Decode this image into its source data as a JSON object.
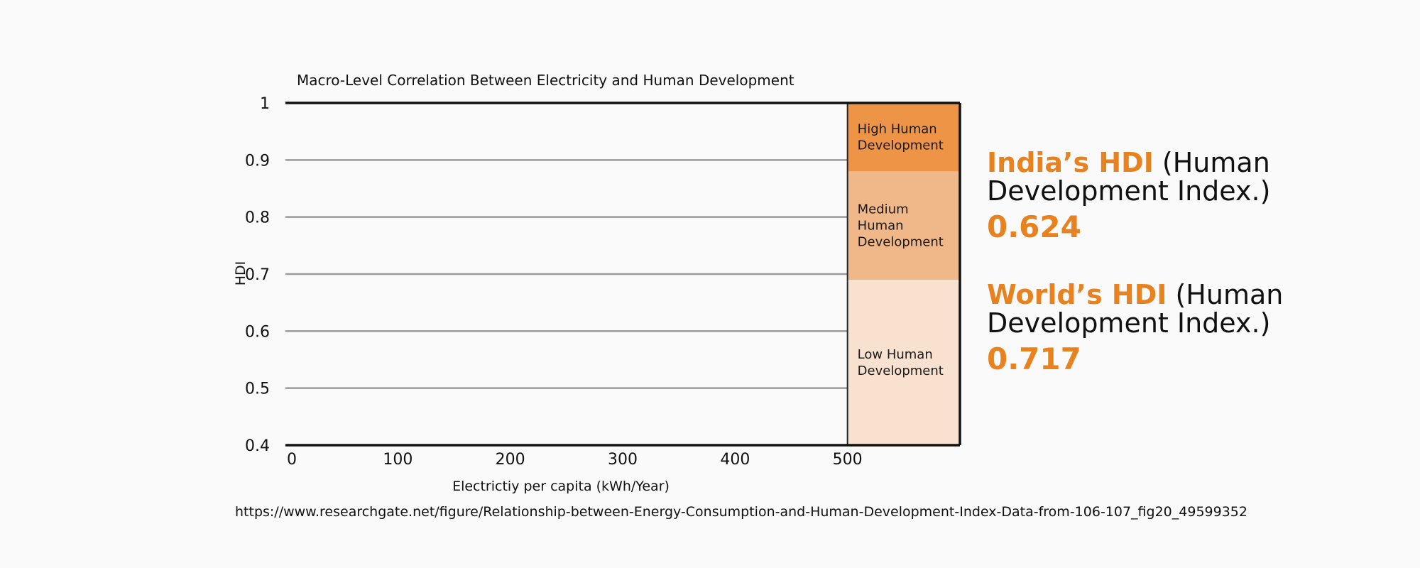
{
  "chart_data": {
    "type": "bar",
    "title": "Macro-Level Correlation Between Electricity and Human Development",
    "xlabel": "Electrictiy per capita (kWh/Year)",
    "ylabel": "HDI",
    "xlim": [
      0,
      600
    ],
    "ylim": [
      0.4,
      1.0
    ],
    "x_ticks": [
      "0",
      "100",
      "200",
      "300",
      "400",
      "500"
    ],
    "x_tick_values": [
      0,
      100,
      200,
      300,
      400,
      500
    ],
    "y_ticks": [
      "0.4",
      "0.5",
      "0.6",
      "0.7",
      "0.8",
      "0.9",
      "1"
    ],
    "y_tick_values": [
      0.4,
      0.5,
      0.6,
      0.7,
      0.8,
      0.9,
      1.0
    ],
    "grid": true,
    "zones": [
      {
        "label": "High Human Development",
        "y_from": 0.88,
        "y_to": 1.0,
        "x_from": 500,
        "x_to": 600,
        "color": "#ed9447"
      },
      {
        "label": "Medium Human Development",
        "y_from": 0.69,
        "y_to": 0.88,
        "x_from": 500,
        "x_to": 600,
        "color": "#f0b889"
      },
      {
        "label": "Low Human Development",
        "y_from": 0.4,
        "y_to": 0.69,
        "x_from": 500,
        "x_to": 600,
        "color": "#f9e1cf"
      }
    ]
  },
  "source": "https://www.researchgate.net/figure/Relationship-between-Energy-Consumption-and-Human-Development-Index-Data-from-106-107_fig20_49599352",
  "india": {
    "name": "India’s HDI",
    "suffix_line1": " (Human",
    "line2": "Development Index.)",
    "value": "0.624"
  },
  "world": {
    "name": "World’s HDI",
    "suffix_line1": " (Human",
    "line2": "Development Index.)",
    "value": "0.717"
  },
  "colors": {
    "accent": "#e8821f"
  }
}
